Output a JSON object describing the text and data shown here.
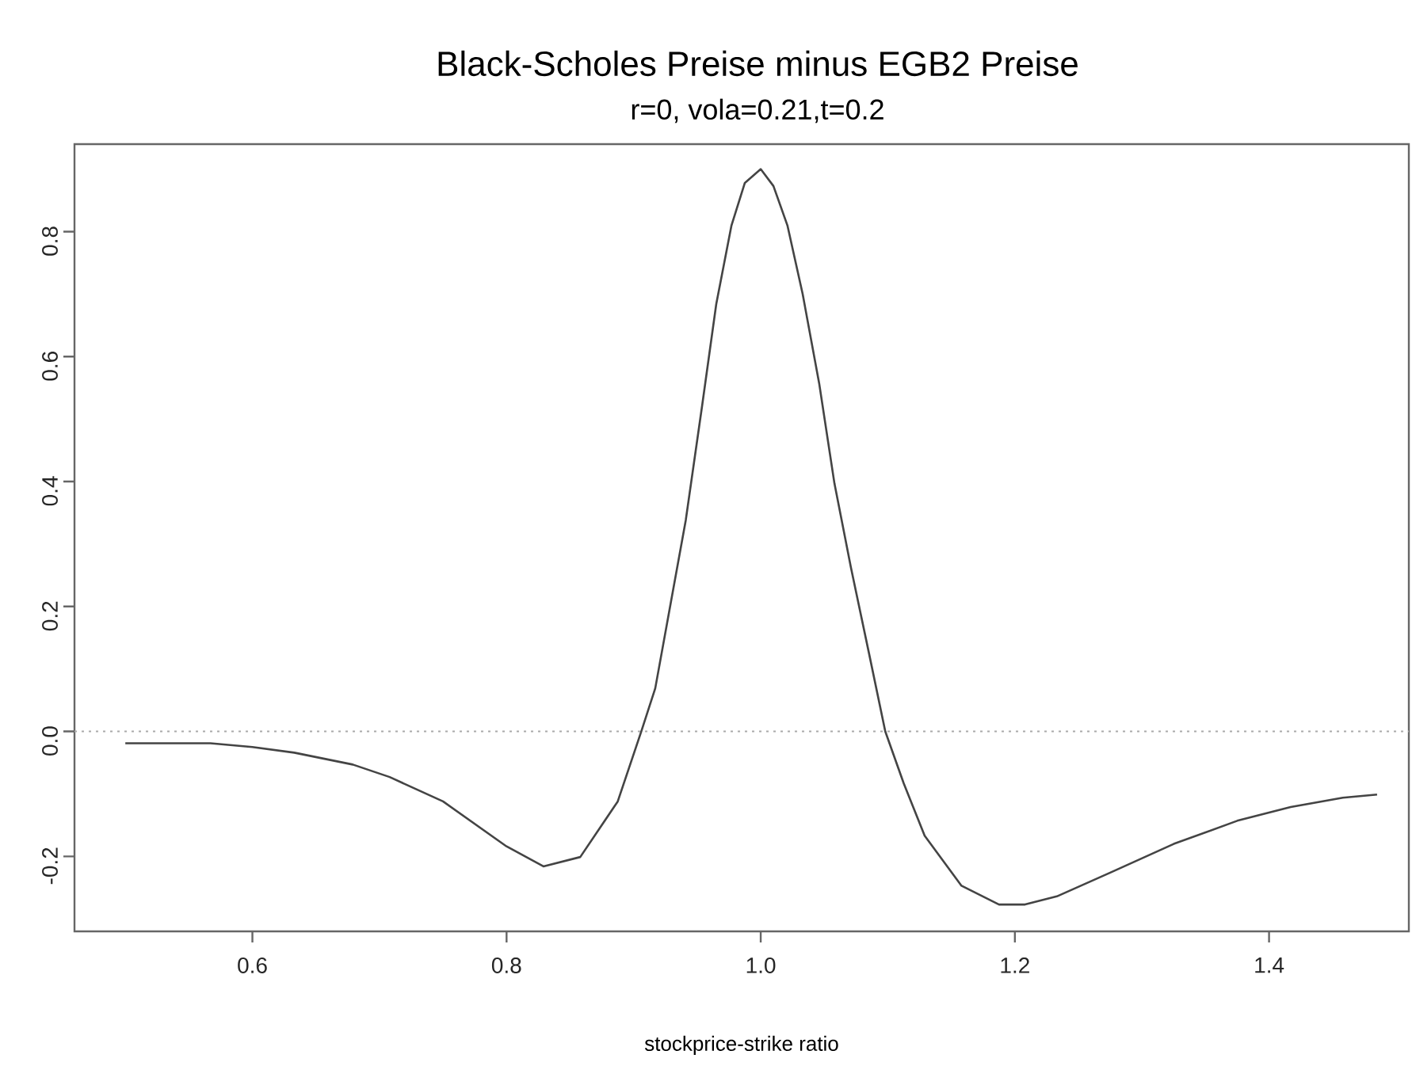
{
  "chart_data": {
    "type": "line",
    "title": "Black-Scholes Preise minus EGB2 Preise",
    "subtitle": "r=0, vola=0.21,t=0.2",
    "xlabel": "stockprice-strike ratio",
    "x": [
      0.5,
      0.567,
      0.6,
      0.633,
      0.679,
      0.708,
      0.75,
      0.8,
      0.829,
      0.858,
      0.8875,
      0.906,
      0.917,
      0.941,
      0.954,
      0.965,
      0.977,
      0.9875,
      1.0,
      1.01,
      1.021,
      1.033,
      1.046,
      1.058,
      1.071,
      1.085,
      1.098,
      1.1125,
      1.129,
      1.158,
      1.1875,
      1.208,
      1.233,
      1.275,
      1.325,
      1.375,
      1.417,
      1.458,
      1.485
    ],
    "values": [
      -0.019,
      -0.019,
      -0.025,
      -0.034,
      -0.053,
      -0.073,
      -0.112,
      -0.184,
      -0.216,
      -0.201,
      -0.112,
      0.0,
      0.069,
      0.338,
      0.523,
      0.684,
      0.81,
      0.878,
      0.9,
      0.873,
      0.81,
      0.7,
      0.557,
      0.397,
      0.262,
      0.127,
      0.0,
      -0.083,
      -0.167,
      -0.247,
      -0.277,
      -0.277,
      -0.264,
      -0.226,
      -0.18,
      -0.143,
      -0.121,
      -0.106,
      -0.101
    ],
    "color": "#444444",
    "xlim": [
      0.46,
      1.51
    ],
    "ylim": [
      -0.32,
      0.94
    ],
    "xticks": [
      {
        "value": 0.6,
        "label": "0.6"
      },
      {
        "value": 0.8,
        "label": "0.8"
      },
      {
        "value": 1.0,
        "label": "1.0"
      },
      {
        "value": 1.2,
        "label": "1.2"
      },
      {
        "value": 1.4,
        "label": "1.4"
      }
    ],
    "yticks": [
      {
        "value": -0.2,
        "label": "-0.2"
      },
      {
        "value": 0.0,
        "label": "0.0"
      },
      {
        "value": 0.2,
        "label": "0.2"
      },
      {
        "value": 0.4,
        "label": "0.4"
      },
      {
        "value": 0.6,
        "label": "0.6"
      },
      {
        "value": 0.8,
        "label": "0.8"
      }
    ],
    "ref_lines": [
      {
        "axis": "y",
        "value": 0,
        "color": "#aaaaaa",
        "line_style": "dotted"
      }
    ]
  }
}
